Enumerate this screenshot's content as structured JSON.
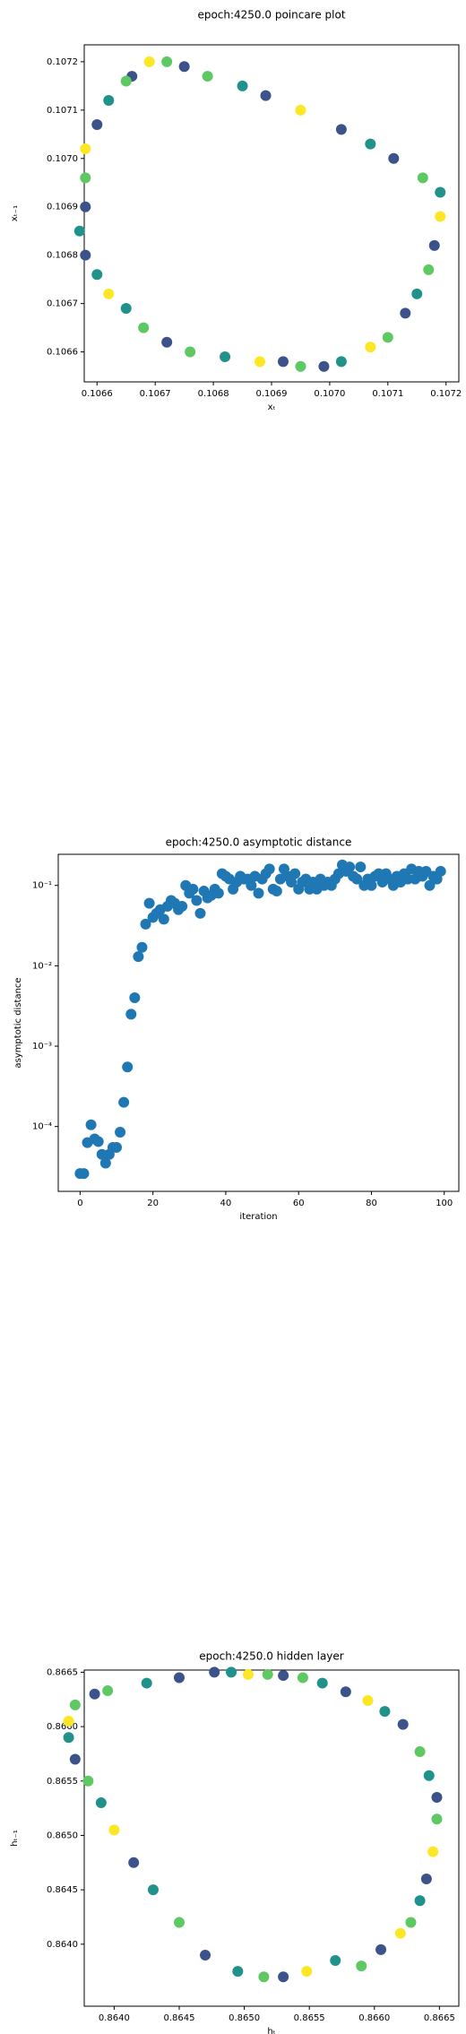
{
  "chart_data": [
    {
      "type": "scatter",
      "title": "epoch:4250.0 poincare plot",
      "xlabel": "xₜ",
      "ylabel": "xₜ₋₁",
      "x": [
        0.10669,
        0.10672,
        0.10675,
        0.10679,
        0.10685,
        0.10689,
        0.10695,
        0.10702,
        0.10707,
        0.10711,
        0.10716,
        0.10719,
        0.10719,
        0.10718,
        0.10717,
        0.10715,
        0.10713,
        0.1071,
        0.10707,
        0.10702,
        0.10699,
        0.10695,
        0.10692,
        0.10688,
        0.10682,
        0.10676,
        0.10672,
        0.10668,
        0.10665,
        0.10662,
        0.1066,
        0.10658,
        0.10657,
        0.10658,
        0.10658,
        0.10658,
        0.1066,
        0.10662,
        0.10666,
        0.10665
      ],
      "values": [
        0.1072,
        0.1072,
        0.10719,
        0.10717,
        0.10715,
        0.10713,
        0.1071,
        0.10706,
        0.10703,
        0.107,
        0.10696,
        0.10693,
        0.10688,
        0.10682,
        0.10677,
        0.10672,
        0.10668,
        0.10663,
        0.10661,
        0.10658,
        0.10657,
        0.10657,
        0.10658,
        0.10658,
        0.10659,
        0.1066,
        0.10662,
        0.10665,
        0.10669,
        0.10672,
        0.10676,
        0.1068,
        0.10685,
        0.1069,
        0.10696,
        0.10702,
        0.10707,
        0.10712,
        0.10717,
        0.10716
      ],
      "colors": [
        "#fde725",
        "#5ec962",
        "#3b528b",
        "#5ec962",
        "#21918c",
        "#3b528b",
        "#fde725",
        "#3b528b",
        "#21918c",
        "#3b528b",
        "#5ec962",
        "#21918c",
        "#fde725",
        "#3b528b",
        "#5ec962",
        "#21918c",
        "#3b528b",
        "#5ec962",
        "#fde725",
        "#21918c",
        "#3b528b",
        "#5ec962",
        "#3b528b",
        "#fde725",
        "#21918c",
        "#5ec962",
        "#3b528b",
        "#5ec962",
        "#21918c",
        "#fde725",
        "#21918c",
        "#3b528b",
        "#21918c",
        "#3b528b",
        "#5ec962",
        "#fde725",
        "#3b528b",
        "#21918c",
        "#3b528b",
        "#5ec962"
      ],
      "xlim": [
        0.106578,
        0.107222
      ],
      "ylim": [
        0.106538,
        0.107235
      ],
      "xticks": [
        {
          "value": 0.1066,
          "label": "0.1066"
        },
        {
          "value": 0.1067,
          "label": "0.1067"
        },
        {
          "value": 0.1068,
          "label": "0.1068"
        },
        {
          "value": 0.1069,
          "label": "0.1069"
        },
        {
          "value": 0.107,
          "label": "0.1070"
        },
        {
          "value": 0.1071,
          "label": "0.1071"
        },
        {
          "value": 0.1072,
          "label": "0.1072"
        }
      ],
      "yticks": [
        {
          "value": 0.1066,
          "label": "0.1066"
        },
        {
          "value": 0.1067,
          "label": "0.1067"
        },
        {
          "value": 0.1068,
          "label": "0.1068"
        },
        {
          "value": 0.1069,
          "label": "0.1069"
        },
        {
          "value": 0.107,
          "label": "0.1070"
        },
        {
          "value": 0.1071,
          "label": "0.1071"
        },
        {
          "value": 0.1072,
          "label": "0.1072"
        }
      ]
    },
    {
      "type": "scatter",
      "title": "epoch:4250.0 asymptotic distance",
      "xlabel": "iteration",
      "ylabel": "asymptotic distance",
      "yscale": "log",
      "color": "#1f77b4",
      "x": [
        0,
        1,
        2,
        3,
        4,
        5,
        6,
        7,
        8,
        9,
        10,
        11,
        12,
        13,
        14,
        15,
        16,
        17,
        18,
        19,
        20,
        21,
        22,
        23,
        24,
        25,
        26,
        27,
        28,
        29,
        30,
        31,
        32,
        33,
        34,
        35,
        36,
        37,
        38,
        39,
        40,
        41,
        42,
        43,
        44,
        45,
        46,
        47,
        48,
        49,
        50,
        51,
        52,
        53,
        54,
        55,
        56,
        57,
        58,
        59,
        60,
        61,
        62,
        63,
        64,
        65,
        66,
        67,
        68,
        69,
        70,
        71,
        72,
        73,
        74,
        75,
        76,
        77,
        78,
        79,
        80,
        81,
        82,
        83,
        84,
        85,
        86,
        87,
        88,
        89,
        90,
        91,
        92,
        93,
        94,
        95,
        96,
        97,
        98,
        99
      ],
      "values": [
        2.6e-05,
        2.6e-05,
        6.3e-05,
        0.000105,
        7e-05,
        6.5e-05,
        4.5e-05,
        3.5e-05,
        4.5e-05,
        5.5e-05,
        5.5e-05,
        8.5e-05,
        0.0002,
        0.00055,
        0.0025,
        0.004,
        0.013,
        0.017,
        0.033,
        0.06,
        0.04,
        0.045,
        0.05,
        0.038,
        0.055,
        0.065,
        0.06,
        0.05,
        0.055,
        0.1,
        0.08,
        0.09,
        0.065,
        0.045,
        0.085,
        0.07,
        0.075,
        0.09,
        0.08,
        0.14,
        0.13,
        0.12,
        0.09,
        0.11,
        0.13,
        0.12,
        0.12,
        0.1,
        0.13,
        0.08,
        0.12,
        0.14,
        0.16,
        0.09,
        0.085,
        0.12,
        0.16,
        0.13,
        0.11,
        0.14,
        0.09,
        0.11,
        0.12,
        0.09,
        0.11,
        0.09,
        0.12,
        0.1,
        0.11,
        0.1,
        0.12,
        0.14,
        0.18,
        0.15,
        0.17,
        0.13,
        0.12,
        0.17,
        0.1,
        0.12,
        0.1,
        0.13,
        0.14,
        0.11,
        0.14,
        0.12,
        0.1,
        0.13,
        0.11,
        0.14,
        0.12,
        0.16,
        0.12,
        0.15,
        0.13,
        0.15,
        0.1,
        0.13,
        0.12,
        0.15
      ],
      "xlim": [
        -6,
        104
      ],
      "ylim": [
        1.56e-05,
        0.244
      ],
      "xticks": [
        0,
        20,
        40,
        60,
        80,
        100
      ],
      "yticks": [
        {
          "value": 0.0001,
          "label": "10⁻⁴"
        },
        {
          "value": 0.001,
          "label": "10⁻³"
        },
        {
          "value": 0.01,
          "label": "10⁻²"
        },
        {
          "value": 0.1,
          "label": "10⁻¹"
        }
      ]
    },
    {
      "type": "scatter",
      "title": "epoch:4250.0 hidden layer",
      "xlabel": "hₜ",
      "ylabel": "hₜ₋₁",
      "x": [
        0.86477,
        0.8649,
        0.86503,
        0.86518,
        0.8653,
        0.86545,
        0.8656,
        0.86578,
        0.86595,
        0.86608,
        0.86622,
        0.86635,
        0.86642,
        0.86648,
        0.86648,
        0.86645,
        0.8664,
        0.86635,
        0.86628,
        0.8662,
        0.86605,
        0.8659,
        0.8657,
        0.86548,
        0.8653,
        0.86515,
        0.86495,
        0.8647,
        0.8645,
        0.8643,
        0.86415,
        0.864,
        0.8639,
        0.8638,
        0.8637,
        0.86365,
        0.86365,
        0.8637,
        0.86385,
        0.86395,
        0.86425,
        0.8645
      ],
      "values": [
        0.8665,
        0.8665,
        0.86648,
        0.86648,
        0.86647,
        0.86645,
        0.8664,
        0.86632,
        0.86624,
        0.86614,
        0.86602,
        0.86577,
        0.86555,
        0.86535,
        0.86515,
        0.86485,
        0.8646,
        0.8644,
        0.8642,
        0.8641,
        0.86395,
        0.8638,
        0.86385,
        0.86375,
        0.8637,
        0.8637,
        0.86375,
        0.8639,
        0.8642,
        0.8645,
        0.86475,
        0.86505,
        0.8653,
        0.8655,
        0.8657,
        0.8659,
        0.86605,
        0.8662,
        0.8663,
        0.86633,
        0.8664,
        0.86645
      ],
      "colors": [
        "#3b528b",
        "#21918c",
        "#fde725",
        "#5ec962",
        "#3b528b",
        "#5ec962",
        "#21918c",
        "#3b528b",
        "#fde725",
        "#21918c",
        "#3b528b",
        "#5ec962",
        "#21918c",
        "#3b528b",
        "#5ec962",
        "#fde725",
        "#3b528b",
        "#21918c",
        "#5ec962",
        "#fde725",
        "#3b528b",
        "#5ec962",
        "#21918c",
        "#fde725",
        "#3b528b",
        "#5ec962",
        "#21918c",
        "#3b528b",
        "#5ec962",
        "#21918c",
        "#3b528b",
        "#fde725",
        "#21918c",
        "#5ec962",
        "#3b528b",
        "#21918c",
        "#fde725",
        "#5ec962",
        "#3b528b",
        "#5ec962",
        "#21918c",
        "#3b528b"
      ],
      "xlim": [
        0.86377,
        0.866649
      ],
      "ylim": [
        0.86343,
        0.86652
      ],
      "xticks": [
        {
          "value": 0.864,
          "label": "0.8640"
        },
        0.8645,
        {
          "value": 0.865,
          "label": "0.8650"
        },
        0.8655,
        {
          "value": 0.866,
          "label": "0.8660"
        },
        0.8665
      ],
      "yticks": [
        {
          "value": 0.864,
          "label": "0.8640"
        },
        0.8645,
        {
          "value": 0.865,
          "label": "0.8650"
        },
        0.8655,
        {
          "value": 0.866,
          "label": "0.8660"
        },
        0.8665
      ]
    }
  ]
}
